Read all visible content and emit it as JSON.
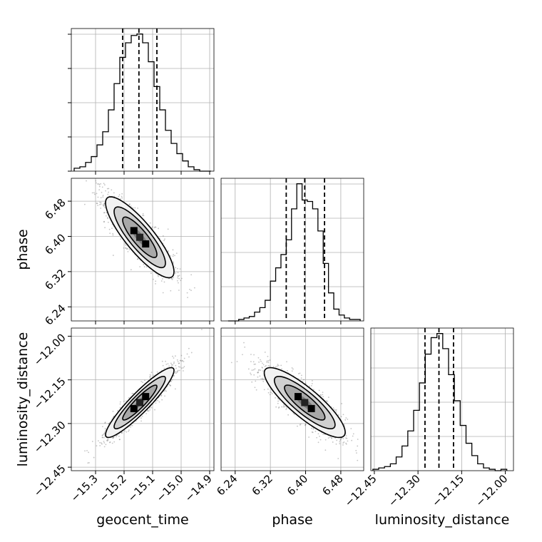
{
  "chart_data": {
    "type": "corner",
    "grid": true,
    "parameters": [
      "geocent_time",
      "phase",
      "luminosity_distance"
    ],
    "axis_labels": {
      "x": [
        "geocent_time",
        "phase",
        "luminosity_distance"
      ],
      "y": [
        "phase",
        "luminosity_distance"
      ]
    },
    "ranges": {
      "geocent_time": [
        -15.385,
        -14.885
      ],
      "phase": [
        6.208,
        6.532
      ],
      "luminosity_distance": [
        -12.462,
        -11.972
      ]
    },
    "ticks": {
      "geocent_time": [
        -15.3,
        -15.2,
        -15.1,
        -15.0,
        -14.9
      ],
      "phase": [
        6.24,
        6.32,
        6.4,
        6.48
      ],
      "luminosity_distance": [
        -12.45,
        -12.3,
        -12.15,
        -12.0
      ]
    },
    "tick_labels": {
      "geocent_time": [
        "−15.3",
        "−15.2",
        "−15.1",
        "−15.0",
        "−14.9"
      ],
      "phase": [
        "6.24",
        "6.32",
        "6.40",
        "6.48"
      ],
      "luminosity_distance": [
        "−12.45",
        "−12.30",
        "−12.15",
        "−12.00"
      ]
    },
    "quantiles": {
      "geocent_time": [
        -15.205,
        -15.148,
        -15.085
      ],
      "phase": [
        6.356,
        6.398,
        6.443
      ],
      "luminosity_distance": [
        -12.276,
        -12.228,
        -12.178
      ]
    },
    "histograms": {
      "geocent_time": {
        "edges": [
          -15.375,
          -15.355,
          -15.335,
          -15.315,
          -15.295,
          -15.275,
          -15.255,
          -15.235,
          -15.215,
          -15.195,
          -15.175,
          -15.155,
          -15.135,
          -15.115,
          -15.095,
          -15.075,
          -15.055,
          -15.035,
          -15.015,
          -14.995,
          -14.975,
          -14.955,
          -14.935,
          -14.915,
          -14.895
        ],
        "counts": [
          2,
          3,
          6,
          10,
          18,
          27,
          42,
          60,
          78,
          88,
          93,
          94,
          88,
          75,
          58,
          42,
          28,
          19,
          12,
          7,
          3,
          1,
          0,
          0
        ]
      },
      "phase": {
        "edges": [
          6.224,
          6.236,
          6.248,
          6.26,
          6.272,
          6.284,
          6.296,
          6.308,
          6.32,
          6.332,
          6.344,
          6.356,
          6.368,
          6.38,
          6.392,
          6.404,
          6.416,
          6.428,
          6.44,
          6.452,
          6.464,
          6.476,
          6.488,
          6.5,
          6.512,
          6.524
        ],
        "counts": [
          0,
          0,
          1,
          2,
          3,
          6,
          9,
          14,
          27,
          36,
          45,
          55,
          76,
          93,
          82,
          81,
          76,
          61,
          39,
          19,
          8,
          4,
          2,
          1,
          1
        ]
      },
      "luminosity_distance": {
        "edges": [
          -12.455,
          -12.435,
          -12.415,
          -12.395,
          -12.375,
          -12.355,
          -12.335,
          -12.315,
          -12.295,
          -12.275,
          -12.255,
          -12.235,
          -12.215,
          -12.195,
          -12.175,
          -12.155,
          -12.135,
          -12.115,
          -12.095,
          -12.075,
          -12.055,
          -12.035,
          -12.015,
          -11.995
        ],
        "counts": [
          1,
          2,
          3,
          5,
          10,
          18,
          29,
          44,
          64,
          85,
          97,
          100,
          89,
          70,
          51,
          33,
          20,
          11,
          5,
          2,
          1,
          0,
          1
        ]
      }
    },
    "joint": [
      {
        "x": "geocent_time",
        "y": "phase",
        "mean": [
          -15.145,
          6.398
        ],
        "sd": [
          0.06,
          0.046
        ],
        "corr": -0.85
      },
      {
        "x": "geocent_time",
        "y": "luminosity_distance",
        "mean": [
          -15.145,
          -12.228
        ],
        "sd": [
          0.06,
          0.06
        ],
        "corr": 0.92
      },
      {
        "x": "phase",
        "y": "luminosity_distance",
        "mean": [
          6.398,
          -12.228
        ],
        "sd": [
          0.046,
          0.06
        ],
        "corr": -0.85
      }
    ]
  }
}
